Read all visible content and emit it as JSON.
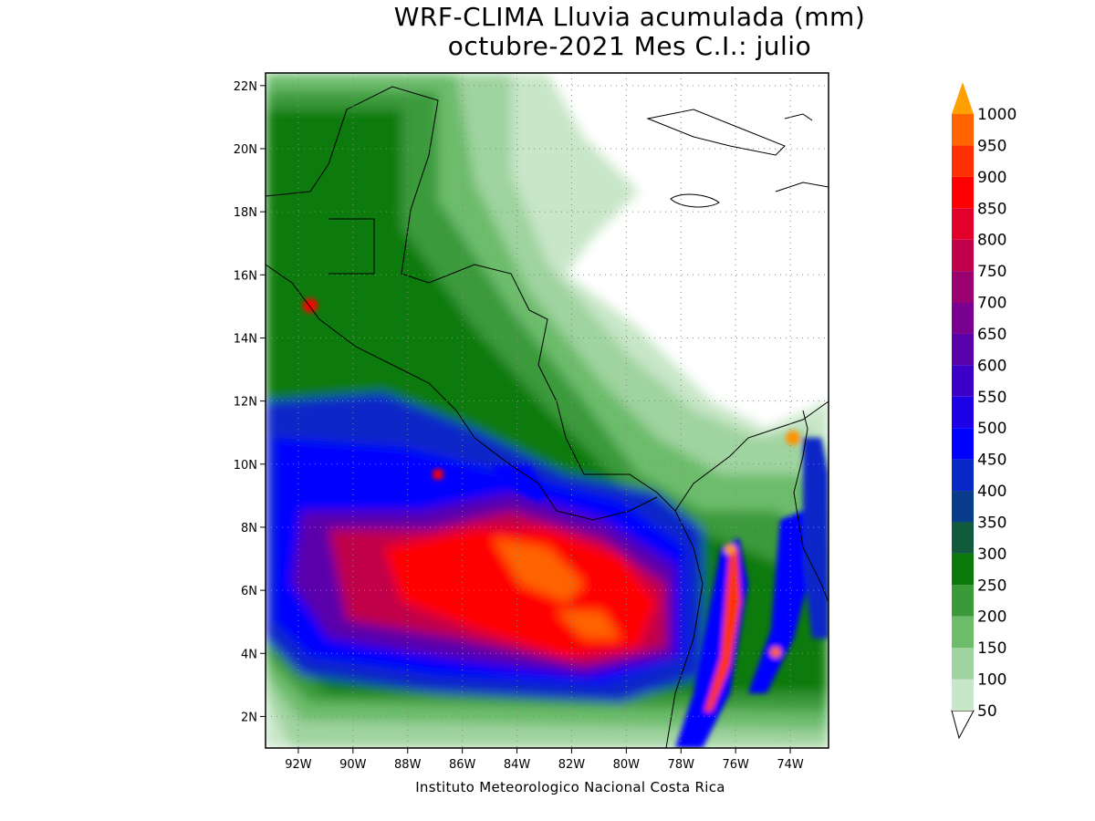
{
  "title_line1": "WRF-CLIMA Lluvia acumulada (mm)",
  "title_line2": "octubre-2021 Mes C.I.: julio",
  "credit": "Instituto Meteorologico Nacional Costa Rica",
  "map": {
    "variable": "Lluvia acumulada",
    "units": "mm",
    "lon_range": [
      -93.2,
      -72.6
    ],
    "lat_range": [
      1.0,
      22.4
    ],
    "lon_ticks": [
      {
        "value": -92,
        "label": "92W"
      },
      {
        "value": -90,
        "label": "90W"
      },
      {
        "value": -88,
        "label": "88W"
      },
      {
        "value": -86,
        "label": "86W"
      },
      {
        "value": -84,
        "label": "84W"
      },
      {
        "value": -82,
        "label": "82W"
      },
      {
        "value": -80,
        "label": "80W"
      },
      {
        "value": -78,
        "label": "78W"
      },
      {
        "value": -76,
        "label": "76W"
      },
      {
        "value": -74,
        "label": "74W"
      }
    ],
    "lat_ticks": [
      {
        "value": 2,
        "label": "2N"
      },
      {
        "value": 4,
        "label": "4N"
      },
      {
        "value": 6,
        "label": "6N"
      },
      {
        "value": 8,
        "label": "8N"
      },
      {
        "value": 10,
        "label": "10N"
      },
      {
        "value": 12,
        "label": "12N"
      },
      {
        "value": 14,
        "label": "14N"
      },
      {
        "value": 16,
        "label": "16N"
      },
      {
        "value": 18,
        "label": "18N"
      },
      {
        "value": 20,
        "label": "20N"
      },
      {
        "value": 22,
        "label": "22N"
      }
    ],
    "grid": "dotted"
  },
  "colorbar": {
    "levels": [
      {
        "label": "50",
        "color": "#c8e6c8"
      },
      {
        "label": "100",
        "color": "#9fd39f"
      },
      {
        "label": "150",
        "color": "#6cbc6c"
      },
      {
        "label": "200",
        "color": "#3a9a3a"
      },
      {
        "label": "250",
        "color": "#0b7a0b"
      },
      {
        "label": "300",
        "color": "#125a3c"
      },
      {
        "label": "350",
        "color": "#0a3c8c"
      },
      {
        "label": "400",
        "color": "#0a28c8"
      },
      {
        "label": "450",
        "color": "#0000ff"
      },
      {
        "label": "500",
        "color": "#1e00e6"
      },
      {
        "label": "550",
        "color": "#3c00c8"
      },
      {
        "label": "600",
        "color": "#5a00aa"
      },
      {
        "label": "650",
        "color": "#7a0090"
      },
      {
        "label": "700",
        "color": "#9a0070"
      },
      {
        "label": "750",
        "color": "#c0004a"
      },
      {
        "label": "800",
        "color": "#e0002a"
      },
      {
        "label": "850",
        "color": "#ff0000"
      },
      {
        "label": "900",
        "color": "#ff3000"
      },
      {
        "label": "950",
        "color": "#ff6400"
      },
      {
        "label": "1000",
        "color": "#ff9400"
      }
    ],
    "overflow_color": "#ffa000",
    "underflow_color": "#ffffff"
  }
}
